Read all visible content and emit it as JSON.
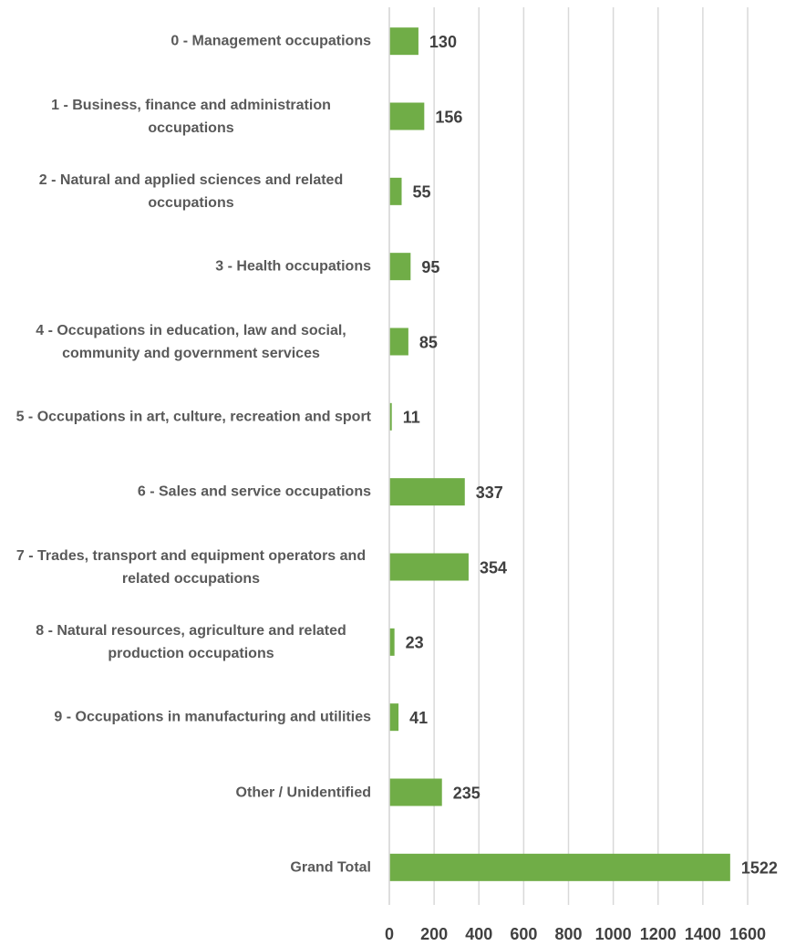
{
  "chart_data": {
    "type": "barh",
    "categories": [
      "0 - Management occupations",
      "1 - Business, finance and administration occupations",
      "2 - Natural and applied sciences and related occupations",
      "3 - Health occupations",
      "4 - Occupations in education, law and social, community and government services",
      "5 - Occupations in art, culture, recreation and sport",
      "6 - Sales and service occupations",
      "7 - Trades, transport and equipment operators and related occupations",
      "8 - Natural resources, agriculture and related production occupations",
      "9 - Occupations in manufacturing and utilities",
      "Other / Unidentified",
      "Grand Total"
    ],
    "values": [
      130,
      156,
      55,
      95,
      85,
      11,
      337,
      354,
      23,
      41,
      235,
      1522
    ],
    "color": "#70ad47",
    "xlim": [
      0,
      1600
    ],
    "xticks": [
      0,
      200,
      400,
      600,
      800,
      1000,
      1200,
      1400,
      1600
    ],
    "grid": true
  }
}
